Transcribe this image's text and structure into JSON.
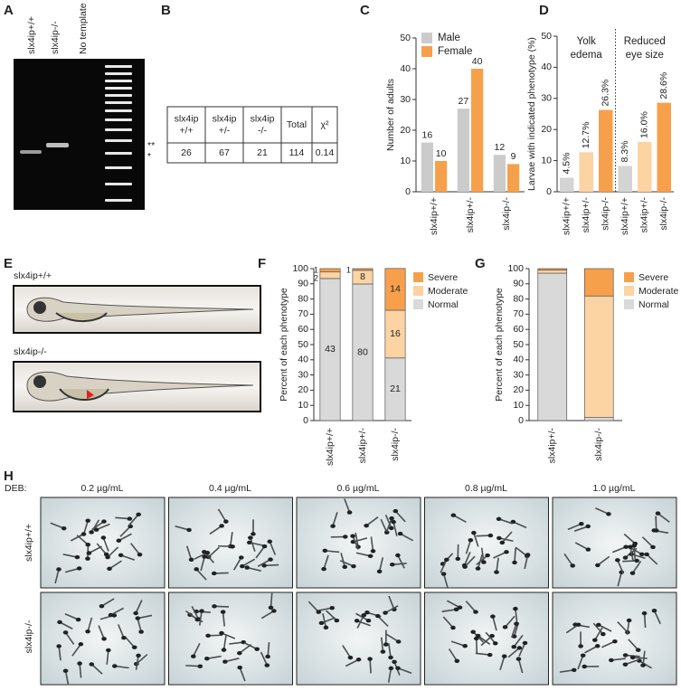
{
  "panel_labels": [
    "A",
    "B",
    "C",
    "D",
    "E",
    "F",
    "G",
    "H"
  ],
  "gel": {
    "lanes": [
      "slx4ip+/+",
      "slx4ip-/-",
      "No template"
    ],
    "markers": [
      "**",
      "*"
    ]
  },
  "table": {
    "header": [
      [
        "slx4ip",
        "+/+"
      ],
      [
        "slx4ip",
        "+/-"
      ],
      [
        "slx4ip",
        "-/-"
      ],
      [
        "Total"
      ],
      [
        "χ²"
      ]
    ],
    "rows": [
      [
        26,
        67,
        21,
        114,
        0.14
      ]
    ]
  },
  "fish": {
    "labels": [
      "slx4ip+/+",
      "slx4ip-/-"
    ]
  },
  "deb": {
    "label": "DEB:",
    "doses": [
      "0.2 µg/mL",
      "0.4 µg/mL",
      "0.6 µg/mL",
      "0.8 µg/mL",
      "1.0 µg/mL"
    ],
    "rows": [
      "slx4ip+/+",
      "slx4ip-/-"
    ]
  },
  "chart_data": [
    {
      "type": "bar",
      "ylabel": "Number of adults",
      "categories": [
        "slx4ip+/+",
        "slx4ip+/-",
        "slx4ip-/-"
      ],
      "series": [
        {
          "name": "Male",
          "color": "#cbcbcb",
          "values": [
            16,
            27,
            12
          ]
        },
        {
          "name": "Female",
          "color": "#f7a04b",
          "values": [
            10,
            40,
            9
          ]
        }
      ],
      "ylim": [
        0,
        50
      ],
      "yticks": [
        0,
        10,
        20,
        30,
        40,
        50
      ],
      "legend": "upper-left",
      "data_labels": true
    },
    {
      "type": "bar",
      "ylabel": "Larvae with indicated phenotype (%)",
      "categories": [
        "slx4ip+/+",
        "slx4ip+/-",
        "slx4ip-/-",
        "slx4ip+/+",
        "slx4ip+/-",
        "slx4ip-/-"
      ],
      "values": [
        4.5,
        12.7,
        26.3,
        8.3,
        16.0,
        28.6
      ],
      "value_labels": [
        "4.5%",
        "12.7%",
        "26.3%",
        "8.3%",
        "16.0%",
        "28.6%"
      ],
      "colors": [
        "#d4d4d4",
        "#fcd3a3",
        "#f7a04b",
        "#d4d4d4",
        "#fcd3a3",
        "#f7a04b"
      ],
      "annotations": [
        [
          "Yolk",
          "edema"
        ],
        [
          "Reduced",
          "eye size"
        ]
      ],
      "ylim": [
        0,
        50
      ],
      "yticks": [
        0,
        10,
        20,
        30,
        40,
        50
      ]
    },
    {
      "type": "stacked_bar",
      "ylabel": "Percent of each phenotype",
      "categories": [
        "slx4ip+/+",
        "slx4ip+/-",
        "slx4ip-/-"
      ],
      "series": [
        {
          "name": "Normal",
          "color": "#d9d9d9",
          "values": [
            93.5,
            89.9,
            41.2
          ],
          "counts": [
            43,
            80,
            21
          ]
        },
        {
          "name": "Moderate",
          "color": "#fcd3a3",
          "values": [
            4.3,
            9.0,
            31.4
          ],
          "counts": [
            2,
            8,
            16
          ]
        },
        {
          "name": "Severe",
          "color": "#f7a04b",
          "values": [
            2.2,
            1.1,
            27.5
          ],
          "counts": [
            1,
            1,
            14
          ]
        }
      ],
      "ylim": [
        0,
        100
      ],
      "yticks": [
        0,
        10,
        20,
        30,
        40,
        50,
        60,
        70,
        80,
        90,
        100
      ],
      "legend": "right"
    },
    {
      "type": "stacked_bar",
      "ylabel": "Percent of each phenotype",
      "categories": [
        "slx4ip+/-",
        "slx4ip-/-"
      ],
      "series": [
        {
          "name": "Normal",
          "color": "#d9d9d9",
          "values": [
            97,
            2
          ]
        },
        {
          "name": "Moderate",
          "color": "#fcd3a3",
          "values": [
            2,
            80
          ]
        },
        {
          "name": "Severe",
          "color": "#f7a04b",
          "values": [
            1,
            18
          ]
        }
      ],
      "ylim": [
        0,
        100
      ],
      "yticks": [
        0,
        10,
        20,
        30,
        40,
        50,
        60,
        70,
        80,
        90,
        100
      ],
      "legend": "right"
    }
  ]
}
